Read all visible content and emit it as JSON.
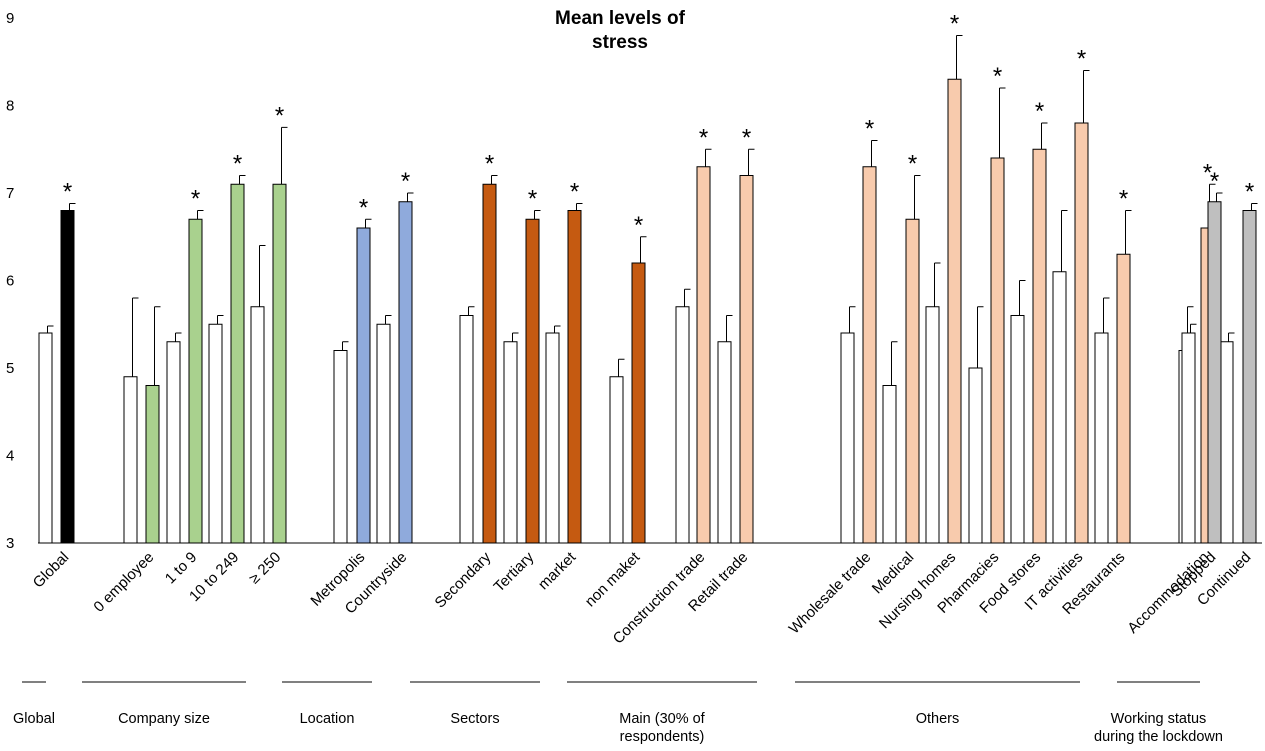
{
  "chart_data": {
    "type": "bar",
    "title_line1": "Mean levels of",
    "title_line2": "stress",
    "ylim": [
      3,
      9
    ],
    "yticks": [
      3,
      4,
      5,
      6,
      7,
      8,
      9
    ],
    "significance_marker": "*",
    "legend": null,
    "colors": {
      "reference": "#ffffff",
      "global": "#000000",
      "company_size": "#a9d18e",
      "location": "#8faadc",
      "sectors": "#c55a11",
      "activities": "#f8cbad",
      "working_status": "#bfbfbf"
    },
    "bars": [
      {
        "category": "Global",
        "value": 5.4,
        "error": 0.08,
        "color": "#ffffff",
        "significant": false
      },
      {
        "category": "Global",
        "value": 6.8,
        "error": 0.08,
        "color": "#000000",
        "significant": true
      },
      {
        "category": "0 employee",
        "value": 4.9,
        "error": 0.9,
        "color": "#ffffff",
        "significant": false
      },
      {
        "category": "0 employee",
        "value": 4.8,
        "error": 0.9,
        "color": "#a9d18e",
        "significant": false
      },
      {
        "category": "1 to 9",
        "value": 5.3,
        "error": 0.1,
        "color": "#ffffff",
        "significant": false
      },
      {
        "category": "1 to 9",
        "value": 6.7,
        "error": 0.1,
        "color": "#a9d18e",
        "significant": true
      },
      {
        "category": "10 to 249",
        "value": 5.5,
        "error": 0.1,
        "color": "#ffffff",
        "significant": false
      },
      {
        "category": "10 to 249",
        "value": 7.1,
        "error": 0.1,
        "color": "#a9d18e",
        "significant": true
      },
      {
        "category": "≥ 250",
        "value": 5.7,
        "error": 0.7,
        "color": "#ffffff",
        "significant": false
      },
      {
        "category": "≥ 250",
        "value": 7.1,
        "error": 0.65,
        "color": "#a9d18e",
        "significant": true
      },
      {
        "category": "Metropolis",
        "value": 5.2,
        "error": 0.1,
        "color": "#ffffff",
        "significant": false
      },
      {
        "category": "Metropolis",
        "value": 6.6,
        "error": 0.1,
        "color": "#8faadc",
        "significant": true
      },
      {
        "category": "Countryside",
        "value": 5.5,
        "error": 0.1,
        "color": "#ffffff",
        "significant": false
      },
      {
        "category": "Countryside",
        "value": 6.9,
        "error": 0.1,
        "color": "#8faadc",
        "significant": true
      },
      {
        "category": "Secondary",
        "value": 5.6,
        "error": 0.1,
        "color": "#ffffff",
        "significant": false
      },
      {
        "category": "Secondary",
        "value": 7.1,
        "error": 0.1,
        "color": "#c55a11",
        "significant": true
      },
      {
        "category": "Tertiary",
        "value": 5.3,
        "error": 0.1,
        "color": "#ffffff",
        "significant": false
      },
      {
        "category": "Tertiary",
        "value": 6.7,
        "error": 0.1,
        "color": "#c55a11",
        "significant": true
      },
      {
        "category": "market",
        "value": 5.4,
        "error": 0.08,
        "color": "#ffffff",
        "significant": false
      },
      {
        "category": "market",
        "value": 6.8,
        "error": 0.08,
        "color": "#c55a11",
        "significant": true
      },
      {
        "category": "non maket",
        "value": 4.9,
        "error": 0.2,
        "color": "#ffffff",
        "significant": false
      },
      {
        "category": "non maket",
        "value": 6.2,
        "error": 0.3,
        "color": "#c55a11",
        "significant": true
      },
      {
        "category": "Construction trade",
        "value": 5.7,
        "error": 0.2,
        "color": "#ffffff",
        "significant": false
      },
      {
        "category": "Construction trade",
        "value": 7.3,
        "error": 0.2,
        "color": "#f8cbad",
        "significant": true
      },
      {
        "category": "Retail trade",
        "value": 5.3,
        "error": 0.3,
        "color": "#ffffff",
        "significant": false
      },
      {
        "category": "Retail trade",
        "value": 7.2,
        "error": 0.3,
        "color": "#f8cbad",
        "significant": true
      },
      {
        "category": "Wholesale trade",
        "value": 5.4,
        "error": 0.3,
        "color": "#ffffff",
        "significant": false
      },
      {
        "category": "Wholesale trade",
        "value": 7.3,
        "error": 0.3,
        "color": "#f8cbad",
        "significant": true
      },
      {
        "category": "Medical",
        "value": 4.8,
        "error": 0.5,
        "color": "#ffffff",
        "significant": false
      },
      {
        "category": "Medical",
        "value": 6.7,
        "error": 0.5,
        "color": "#f8cbad",
        "significant": true
      },
      {
        "category": "Nursing homes",
        "value": 5.7,
        "error": 0.5,
        "color": "#ffffff",
        "significant": false
      },
      {
        "category": "Nursing homes",
        "value": 8.3,
        "error": 0.5,
        "color": "#f8cbad",
        "significant": true
      },
      {
        "category": "Pharmacies",
        "value": 5.0,
        "error": 0.7,
        "color": "#ffffff",
        "significant": false
      },
      {
        "category": "Pharmacies",
        "value": 7.4,
        "error": 0.8,
        "color": "#f8cbad",
        "significant": true
      },
      {
        "category": "Food stores",
        "value": 5.6,
        "error": 0.4,
        "color": "#ffffff",
        "significant": false
      },
      {
        "category": "Food stores",
        "value": 7.5,
        "error": 0.3,
        "color": "#f8cbad",
        "significant": true
      },
      {
        "category": "IT activities",
        "value": 6.1,
        "error": 0.7,
        "color": "#ffffff",
        "significant": false
      },
      {
        "category": "IT activities",
        "value": 7.8,
        "error": 0.6,
        "color": "#f8cbad",
        "significant": true
      },
      {
        "category": "Restaurants",
        "value": 5.4,
        "error": 0.4,
        "color": "#ffffff",
        "significant": false
      },
      {
        "category": "Restaurants",
        "value": 6.3,
        "error": 0.5,
        "color": "#f8cbad",
        "significant": true
      },
      {
        "category": "Accommodation",
        "value": 5.2,
        "error": 0.5,
        "color": "#ffffff",
        "significant": false
      },
      {
        "category": "Accommodation",
        "value": 6.6,
        "error": 0.5,
        "color": "#f8cbad",
        "significant": true
      },
      {
        "category": "Continued",
        "value": 5.3,
        "error": 0.1,
        "color": "#ffffff",
        "significant": false
      },
      {
        "category": "Continued",
        "value": 6.8,
        "error": 0.08,
        "color": "#bfbfbf",
        "significant": true
      },
      {
        "category": "Stopped",
        "value": 5.4,
        "error": 0.1,
        "color": "#ffffff",
        "significant": false
      },
      {
        "category": "Stopped",
        "value": 6.9,
        "error": 0.1,
        "color": "#bfbfbf",
        "significant": true
      }
    ],
    "groups": [
      {
        "label": [
          "Global"
        ],
        "first": 0,
        "last": 1
      },
      {
        "label": [
          "Company size"
        ],
        "first": 2,
        "last": 9
      },
      {
        "label": [
          "Location"
        ],
        "first": 10,
        "last": 13
      },
      {
        "label": [
          "Sectors"
        ],
        "first": 14,
        "last": 21
      },
      {
        "label": [
          "Main (30% of",
          "respondents)"
        ],
        "first": 22,
        "last": 27
      },
      {
        "label": [
          "Others"
        ],
        "first": 28,
        "last": 41
      },
      {
        "label": [
          "Working status",
          "during the lockdown"
        ],
        "first": 42,
        "last": 45
      }
    ]
  }
}
